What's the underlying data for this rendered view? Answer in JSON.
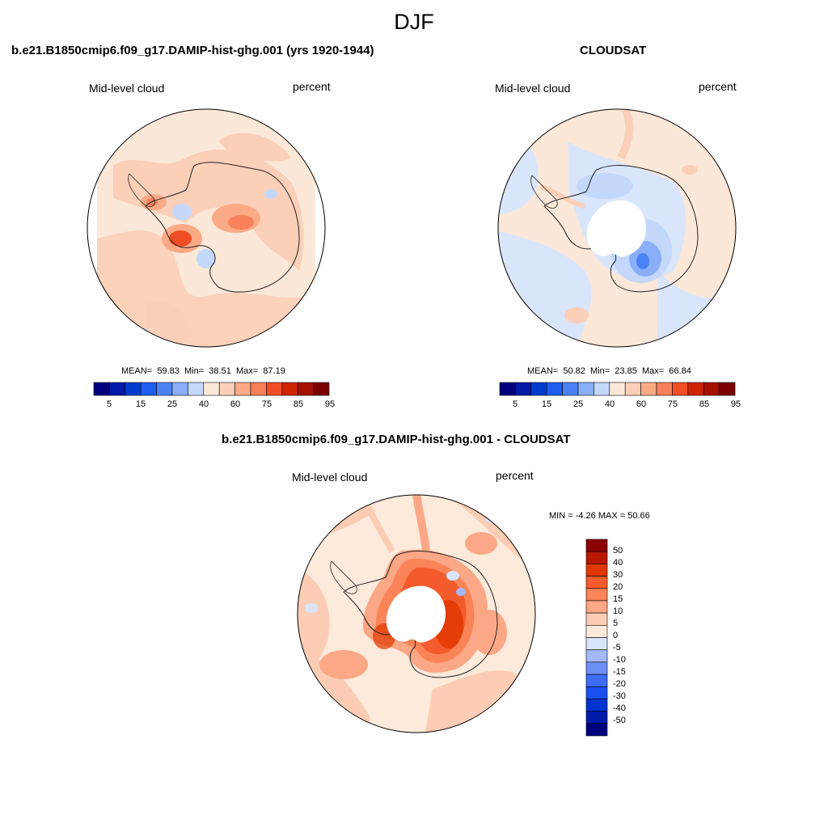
{
  "figure": {
    "title": "DJF"
  },
  "colors": {
    "abs_scale": [
      "#00007f",
      "#0019a6",
      "#003ccc",
      "#1f5df0",
      "#4a82f5",
      "#8aaef8",
      "#c3d8fb",
      "#fbe8d8",
      "#fccfb8",
      "#fcaa86",
      "#f8805a",
      "#f14d25",
      "#cf2400",
      "#a51000",
      "#7b0000"
    ],
    "diff_scale": [
      "#00007f",
      "#001aa8",
      "#0034d1",
      "#1b4ff0",
      "#3f6df5",
      "#6e90f7",
      "#a2b8f9",
      "#d9e5fb",
      "#fdeadb",
      "#fccdb4",
      "#fca785",
      "#fa8357",
      "#f45b2c",
      "#e03600",
      "#b71800",
      "#8b0000"
    ],
    "land_outline": "#222222",
    "missing": "#ffffff"
  },
  "panels": [
    {
      "title": "b.e21.B1850cmip6.f09_g17.DAMIP-hist-ghg.001 (yrs 1920-1944)",
      "variable": "Mid-level cloud",
      "units": "percent",
      "stats": {
        "mean_label": "MEAN=",
        "mean": "59.83",
        "min_label": "Min=",
        "min": "38.51",
        "max_label": "Max=",
        "max": "87.19"
      },
      "colorbar": {
        "ticks": [
          "5",
          "15",
          "25",
          "40",
          "60",
          "75",
          "85",
          "95"
        ]
      }
    },
    {
      "title": "CLOUDSAT",
      "variable": "Mid-level cloud",
      "units": "percent",
      "stats": {
        "mean_label": "MEAN=",
        "mean": "50.82",
        "min_label": "Min=",
        "min": "23.85",
        "max_label": "Max=",
        "max": "66.84"
      },
      "colorbar": {
        "ticks": [
          "5",
          "15",
          "25",
          "40",
          "60",
          "75",
          "85",
          "95"
        ]
      }
    },
    {
      "title": "b.e21.B1850cmip6.f09_g17.DAMIP-hist-ghg.001 - CLOUDSAT",
      "variable": "Mid-level cloud",
      "units": "percent",
      "stats": {
        "text": "MIN =  -4.26 MAX =  50.66"
      },
      "colorbar": {
        "ticks": [
          "50",
          "40",
          "30",
          "20",
          "15",
          "10",
          "5",
          "0",
          "-5",
          "-10",
          "-15",
          "-20",
          "-30",
          "-40",
          "-50"
        ]
      }
    }
  ]
}
